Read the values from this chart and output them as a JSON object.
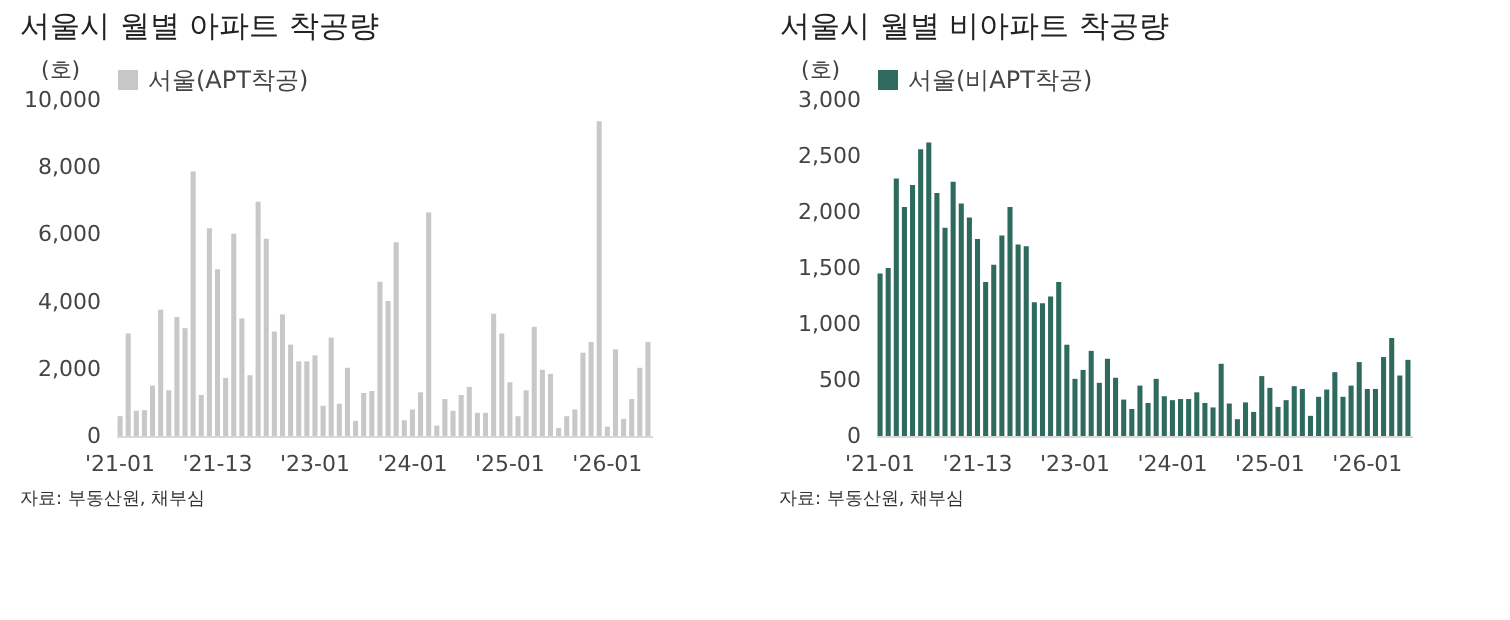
{
  "chart_data": [
    {
      "type": "bar",
      "title": "서울시 월별 아파트 착공량",
      "ylabel": "(호)",
      "legend": "top",
      "annotations": [
        "자료: 부동산원, 채부심"
      ],
      "categories": [
        "'21-01",
        null,
        null,
        null,
        null,
        null,
        null,
        null,
        null,
        null,
        null,
        null,
        "'21-13",
        null,
        null,
        null,
        null,
        null,
        null,
        null,
        null,
        null,
        null,
        null,
        "'23-01",
        null,
        null,
        null,
        null,
        null,
        null,
        null,
        null,
        null,
        null,
        null,
        "'24-01",
        null,
        null,
        null,
        null,
        null,
        null,
        null,
        null,
        null,
        null,
        null,
        "'25-01",
        null,
        null,
        null,
        null,
        null,
        null,
        null,
        null,
        null,
        null,
        null,
        "'26-01",
        null,
        null,
        null,
        null,
        null
      ],
      "ylim": [
        0,
        10000
      ],
      "yticks": [
        {
          "value": 0,
          "label": "0"
        },
        {
          "value": 2000,
          "label": "2,000"
        },
        {
          "value": 4000,
          "label": "4,000"
        },
        {
          "value": 6000,
          "label": "6,000"
        },
        {
          "value": 8000,
          "label": "8,000"
        },
        {
          "value": 10000,
          "label": "10,000"
        }
      ],
      "series": [
        {
          "name": "서울(APT착공)",
          "color": "#c8c8c8",
          "values": [
            590,
            3050,
            750,
            770,
            1500,
            3760,
            1360,
            3540,
            3210,
            7870,
            1220,
            6180,
            4960,
            1730,
            6020,
            3500,
            1810,
            6970,
            5870,
            3110,
            3620,
            2720,
            2220,
            2220,
            2400,
            900,
            2930,
            960,
            2030,
            450,
            1280,
            1340,
            4590,
            4020,
            5770,
            470,
            790,
            1300,
            6650,
            310,
            1100,
            750,
            1220,
            1460,
            690,
            690,
            3640,
            3050,
            1600,
            590,
            1360,
            3250,
            1970,
            1850,
            240,
            590,
            790,
            2480,
            2800,
            9370,
            280,
            2580,
            510,
            1100,
            2030,
            2800
          ]
        }
      ]
    },
    {
      "type": "bar",
      "title": "서울시 월별 비아파트 착공량",
      "ylabel": "(호)",
      "legend": "top",
      "annotations": [
        "자료: 부동산원, 채부심"
      ],
      "categories": [
        "'21-01",
        null,
        null,
        null,
        null,
        null,
        null,
        null,
        null,
        null,
        null,
        null,
        "'21-13",
        null,
        null,
        null,
        null,
        null,
        null,
        null,
        null,
        null,
        null,
        null,
        "'23-01",
        null,
        null,
        null,
        null,
        null,
        null,
        null,
        null,
        null,
        null,
        null,
        "'24-01",
        null,
        null,
        null,
        null,
        null,
        null,
        null,
        null,
        null,
        null,
        null,
        "'25-01",
        null,
        null,
        null,
        null,
        null,
        null,
        null,
        null,
        null,
        null,
        null,
        "'26-01",
        null,
        null,
        null,
        null,
        null
      ],
      "ylim": [
        0,
        3000
      ],
      "yticks": [
        {
          "value": 0,
          "label": "0"
        },
        {
          "value": 500,
          "label": "500"
        },
        {
          "value": 1000,
          "label": "1,000"
        },
        {
          "value": 1500,
          "label": "1,500"
        },
        {
          "value": 2000,
          "label": "2,000"
        },
        {
          "value": 2500,
          "label": "2,500"
        },
        {
          "value": 3000,
          "label": "3,000"
        }
      ],
      "series": [
        {
          "name": "서울(비APT착공)",
          "color": "#2e6b5e",
          "values": [
            1450,
            1500,
            2300,
            2045,
            2240,
            2560,
            2620,
            2170,
            1860,
            2270,
            2075,
            1950,
            1760,
            1375,
            1530,
            1790,
            2045,
            1710,
            1695,
            1195,
            1185,
            1245,
            1375,
            815,
            510,
            590,
            760,
            475,
            690,
            520,
            325,
            240,
            450,
            295,
            510,
            355,
            320,
            330,
            330,
            390,
            295,
            255,
            645,
            290,
            150,
            300,
            215,
            535,
            430,
            260,
            320,
            445,
            420,
            180,
            350,
            415,
            570,
            350,
            450,
            660,
            420,
            420,
            705,
            875,
            540,
            680
          ]
        }
      ]
    }
  ]
}
